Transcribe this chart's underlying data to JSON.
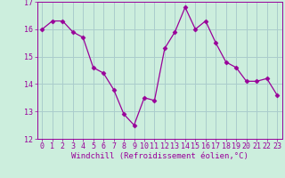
{
  "x": [
    0,
    1,
    2,
    3,
    4,
    5,
    6,
    7,
    8,
    9,
    10,
    11,
    12,
    13,
    14,
    15,
    16,
    17,
    18,
    19,
    20,
    21,
    22,
    23
  ],
  "y": [
    16.0,
    16.3,
    16.3,
    15.9,
    15.7,
    14.6,
    14.4,
    13.8,
    12.9,
    12.5,
    13.5,
    13.4,
    15.3,
    15.9,
    16.8,
    16.0,
    16.3,
    15.5,
    14.8,
    14.6,
    14.1,
    14.1,
    14.2,
    13.6
  ],
  "line_color": "#990099",
  "marker": "D",
  "marker_size": 2.5,
  "bg_color": "#cceedd",
  "grid_color": "#aacccc",
  "xlabel": "Windchill (Refroidissement éolien,°C)",
  "ylim": [
    12,
    17
  ],
  "xlim_min": -0.5,
  "xlim_max": 23.5,
  "yticks": [
    12,
    13,
    14,
    15,
    16,
    17
  ],
  "xticks": [
    0,
    1,
    2,
    3,
    4,
    5,
    6,
    7,
    8,
    9,
    10,
    11,
    12,
    13,
    14,
    15,
    16,
    17,
    18,
    19,
    20,
    21,
    22,
    23
  ],
  "tick_label_color": "#990099",
  "label_color": "#990099",
  "label_fontsize": 6.5,
  "tick_fontsize": 6.0
}
